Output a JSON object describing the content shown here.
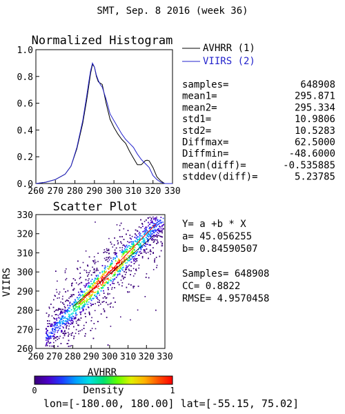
{
  "page": {
    "title": "SMT,  Sep. 8 2016 (week 36)",
    "footer": "lon=[-180.00, 180.00] lat=[-55.15, 75.02]"
  },
  "histogram": {
    "title": "Normalized Histogram",
    "legend": [
      {
        "label": "AVHRR (1)",
        "color": "#000000"
      },
      {
        "label": "VIIRS (2)",
        "color": "#2222cc"
      }
    ],
    "stats": [
      {
        "label": "samples=",
        "value": "648908"
      },
      {
        "label": "mean1=",
        "value": "295.871"
      },
      {
        "label": "mean2=",
        "value": "295.334"
      },
      {
        "label": "std1=",
        "value": "10.9806"
      },
      {
        "label": "std2=",
        "value": "10.5283"
      },
      {
        "label": "Diffmax=",
        "value": "62.5000"
      },
      {
        "label": "Diffmin=",
        "value": "-48.6000"
      },
      {
        "label": "mean(diff)=",
        "value": "-0.535885"
      },
      {
        "label": "stddev(diff)=",
        "value": "5.23785"
      }
    ]
  },
  "scatter": {
    "title": "Scatter Plot",
    "xlabel": "AVHRR",
    "ylabel": "VIIRS",
    "regression": [
      "Y= a +b * X",
      "a= 45.056255",
      "b= 0.84590507"
    ],
    "metrics": [
      "Samples= 648908",
      "CC=  0.8822",
      "RMSE= 4.9570458"
    ]
  },
  "colorbar": {
    "label": "Density",
    "min_label": "0",
    "max_label": "1",
    "colors": [
      "#3a007a",
      "#4b00c8",
      "#1e3cff",
      "#00a0ff",
      "#00e0e0",
      "#00e070",
      "#60ff00",
      "#e0f000",
      "#ffb000",
      "#ff5000",
      "#ff0000"
    ]
  },
  "chart_data": [
    {
      "type": "line",
      "title": "Normalized Histogram",
      "xlim": [
        260,
        330
      ],
      "ylim": [
        0.0,
        1.0
      ],
      "x_ticks": [
        "260",
        "270",
        "280",
        "290",
        "300",
        "310",
        "320",
        "330"
      ],
      "y_ticks": [
        "0.0",
        "0.2",
        "0.4",
        "0.6",
        "0.8",
        "1.0"
      ],
      "grid": false,
      "legend_position": "right",
      "series": [
        {
          "name": "AVHRR (1)",
          "color": "#000000",
          "points": [
            [
              260,
              0.0
            ],
            [
              265,
              0.01
            ],
            [
              270,
              0.03
            ],
            [
              275,
              0.07
            ],
            [
              278,
              0.13
            ],
            [
              281,
              0.26
            ],
            [
              284,
              0.45
            ],
            [
              286,
              0.62
            ],
            [
              287,
              0.72
            ],
            [
              288,
              0.82
            ],
            [
              289,
              0.89
            ],
            [
              290,
              0.87
            ],
            [
              291,
              0.8
            ],
            [
              292,
              0.76
            ],
            [
              293,
              0.75
            ],
            [
              294,
              0.74
            ],
            [
              296,
              0.6
            ],
            [
              298,
              0.48
            ],
            [
              300,
              0.42
            ],
            [
              302,
              0.37
            ],
            [
              304,
              0.33
            ],
            [
              306,
              0.3
            ],
            [
              308,
              0.24
            ],
            [
              310,
              0.19
            ],
            [
              312,
              0.14
            ],
            [
              314,
              0.14
            ],
            [
              316,
              0.17
            ],
            [
              317,
              0.175
            ],
            [
              318,
              0.17
            ],
            [
              320,
              0.12
            ],
            [
              322,
              0.05
            ],
            [
              324,
              0.02
            ],
            [
              326,
              0.0
            ],
            [
              330,
              0.0
            ]
          ]
        },
        {
          "name": "VIIRS (2)",
          "color": "#2222cc",
          "points": [
            [
              260,
              0.0
            ],
            [
              265,
              0.01
            ],
            [
              270,
              0.03
            ],
            [
              275,
              0.07
            ],
            [
              278,
              0.13
            ],
            [
              281,
              0.27
            ],
            [
              284,
              0.47
            ],
            [
              286,
              0.65
            ],
            [
              287,
              0.75
            ],
            [
              288,
              0.84
            ],
            [
              289,
              0.9
            ],
            [
              290,
              0.87
            ],
            [
              291,
              0.81
            ],
            [
              292,
              0.77
            ],
            [
              293,
              0.74
            ],
            [
              294,
              0.72
            ],
            [
              296,
              0.63
            ],
            [
              298,
              0.52
            ],
            [
              300,
              0.47
            ],
            [
              302,
              0.42
            ],
            [
              304,
              0.37
            ],
            [
              306,
              0.33
            ],
            [
              308,
              0.3
            ],
            [
              310,
              0.27
            ],
            [
              312,
              0.22
            ],
            [
              314,
              0.18
            ],
            [
              316,
              0.15
            ],
            [
              318,
              0.12
            ],
            [
              320,
              0.06
            ],
            [
              322,
              0.03
            ],
            [
              324,
              0.01
            ],
            [
              326,
              0.0
            ],
            [
              330,
              0.0
            ]
          ]
        }
      ]
    },
    {
      "type": "heatmap",
      "title": "Scatter Plot",
      "xlabel": "AVHRR",
      "ylabel": "VIIRS",
      "xlim": [
        260,
        330
      ],
      "ylim": [
        260,
        330
      ],
      "x_ticks": [
        "260",
        "270",
        "280",
        "290",
        "300",
        "310",
        "320",
        "330"
      ],
      "y_ticks": [
        "260",
        "270",
        "280",
        "290",
        "300",
        "310",
        "320",
        "330"
      ],
      "regression_line": {
        "a": 45.056255,
        "b": 0.84590507,
        "color": "#000000"
      },
      "identity_line_color": "#ff0000",
      "density_ridge": [
        [
          283,
          283
        ],
        [
          290,
          291
        ],
        [
          300,
          300
        ],
        [
          310,
          309
        ],
        [
          320,
          318
        ],
        [
          326,
          324
        ]
      ]
    }
  ]
}
